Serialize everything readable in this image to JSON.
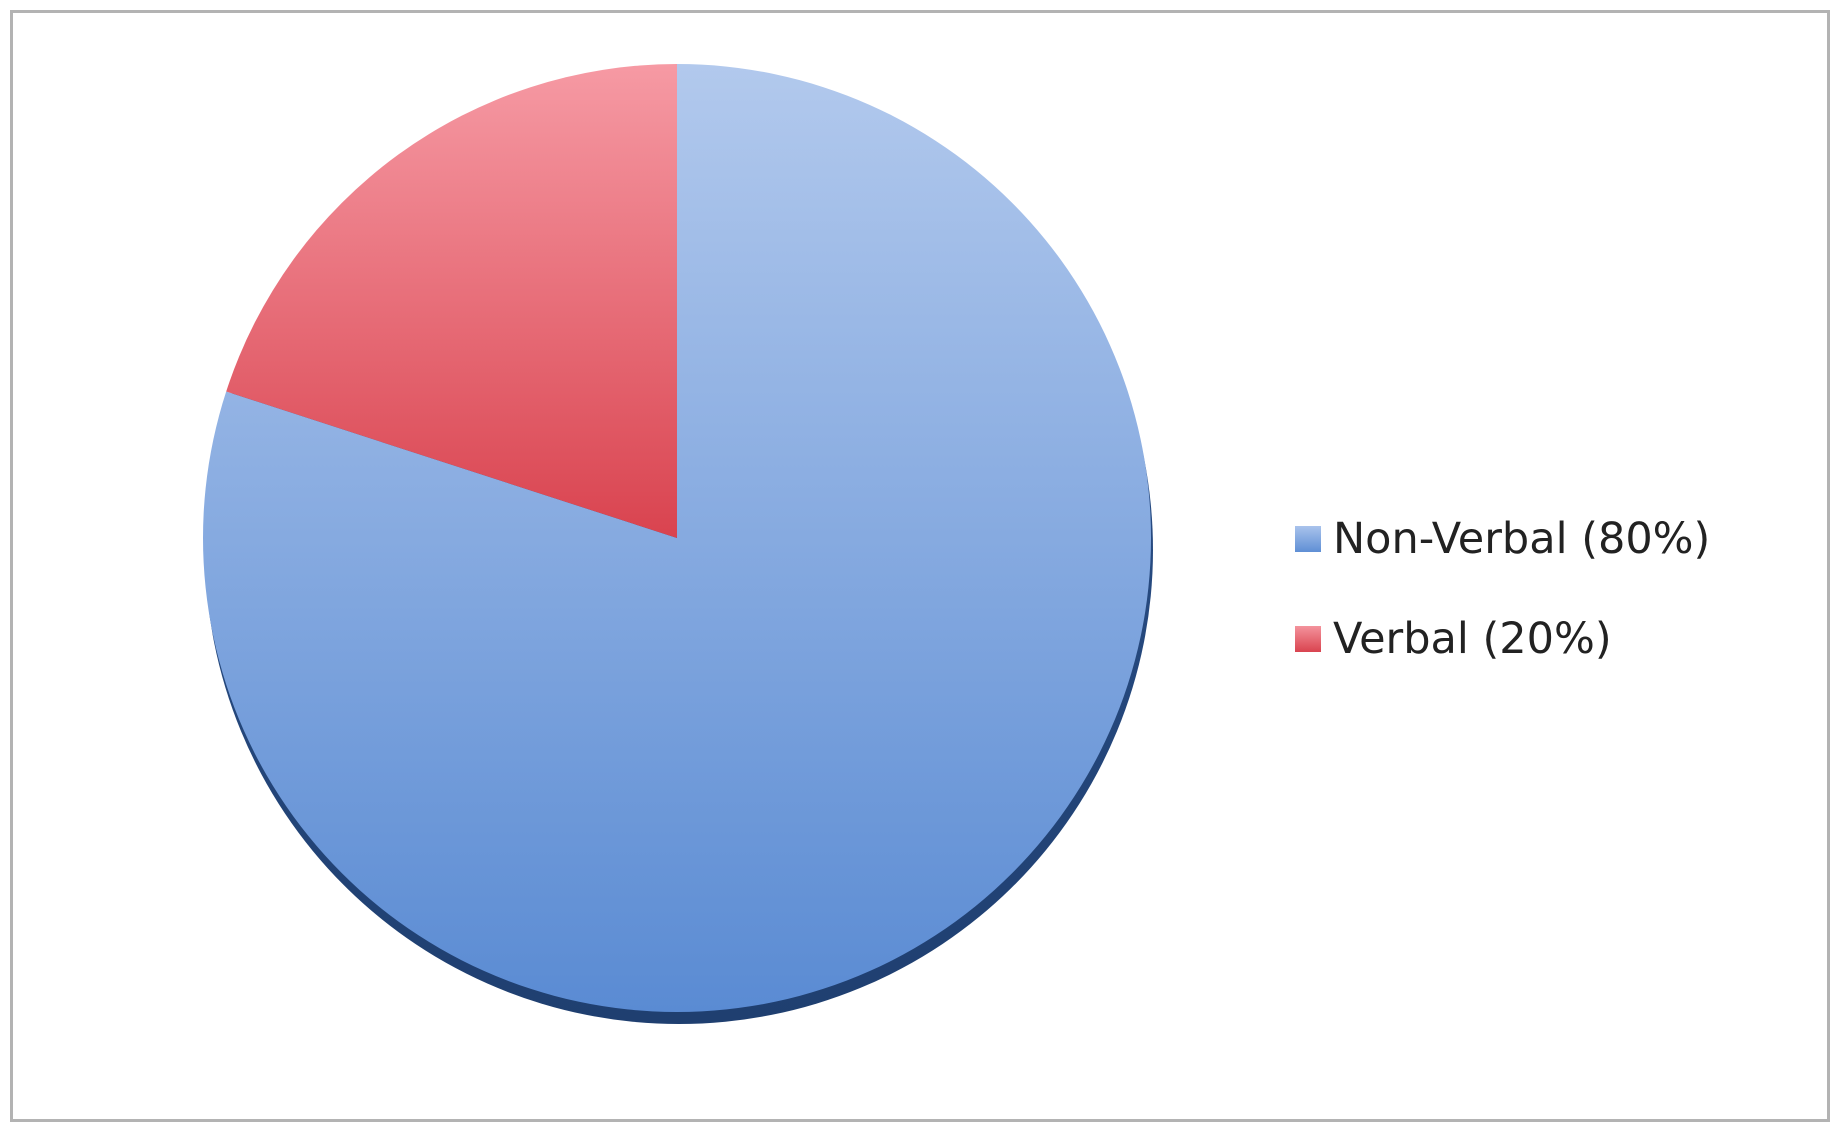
{
  "chart_data": {
    "type": "pie",
    "slices": [
      {
        "label": "Non-Verbal (80%)",
        "value": 80,
        "color": "#7aa3dd"
      },
      {
        "label": "Verbal (20%)",
        "value": 20,
        "color": "#e8616c"
      }
    ],
    "legend_position": "right",
    "start_angle_deg": 0,
    "direction": "clockwise"
  }
}
